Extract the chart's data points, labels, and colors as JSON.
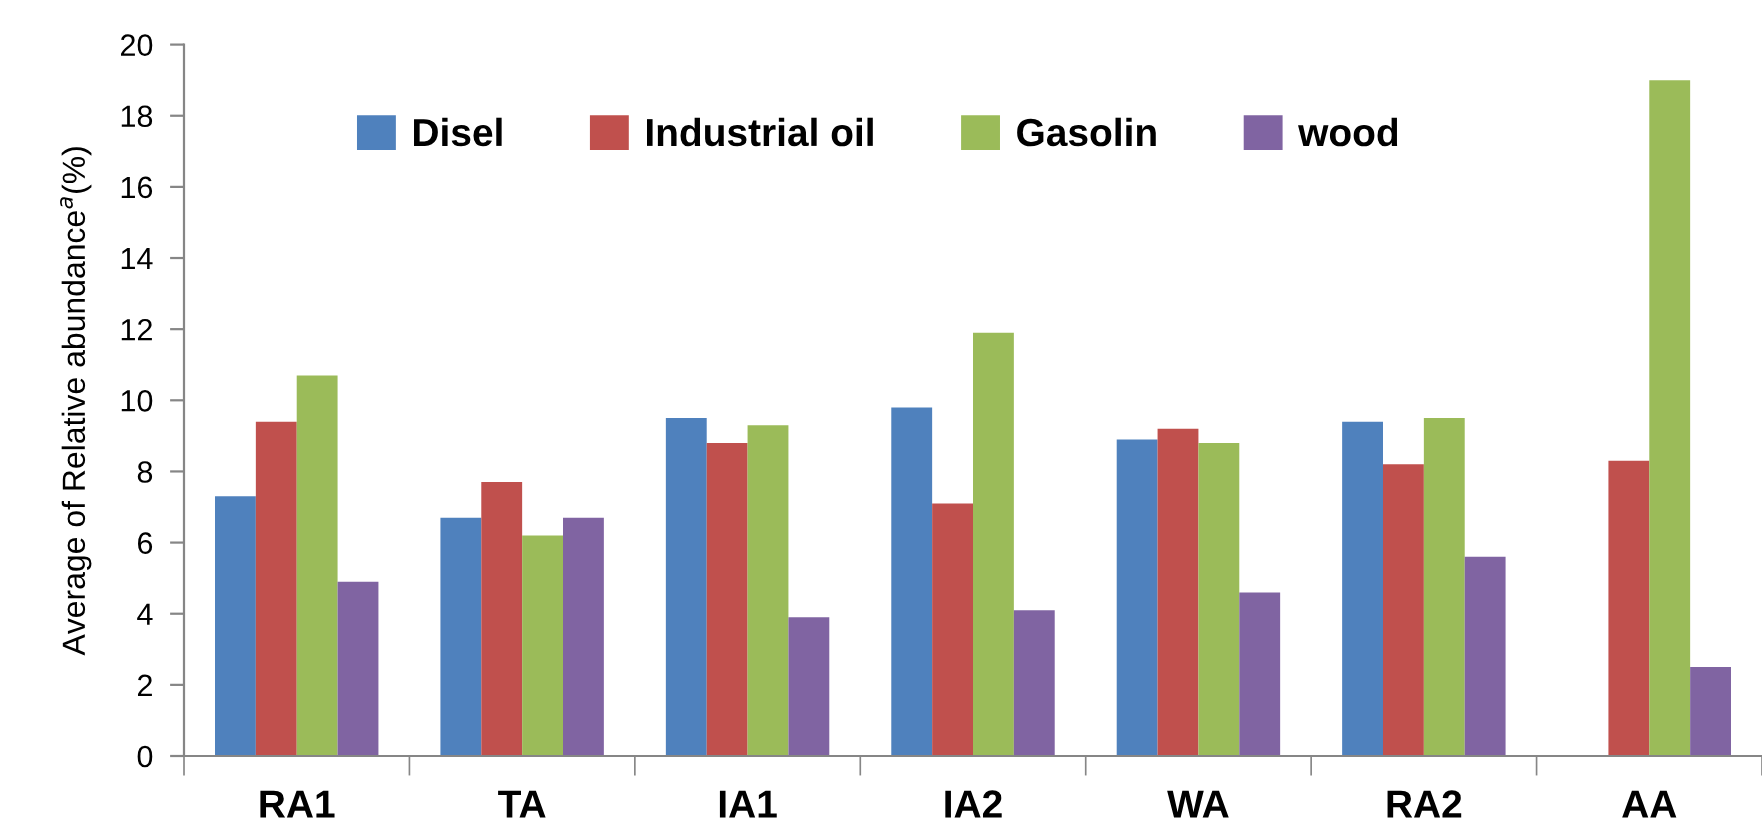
{
  "chart_data": {
    "type": "bar",
    "ylabel": "Average of Relative abundance$^{a}$(%)",
    "categories": [
      "RA1",
      "TA",
      "IA1",
      "IA2",
      "WA",
      "RA2",
      "AA"
    ],
    "series": [
      {
        "name": "Disel",
        "color": "#4f81bd",
        "values": [
          7.3,
          6.7,
          9.5,
          9.8,
          8.9,
          9.4,
          null
        ]
      },
      {
        "name": "Industrial oil",
        "color": "#c0504d",
        "values": [
          9.4,
          7.7,
          8.8,
          7.1,
          9.2,
          8.2,
          8.3
        ]
      },
      {
        "name": "Gasolin",
        "color": "#9bbb59",
        "values": [
          10.7,
          6.2,
          9.3,
          11.9,
          8.8,
          9.5,
          19.0
        ]
      },
      {
        "name": "wood",
        "color": "#8064a2",
        "values": [
          4.9,
          6.7,
          3.9,
          4.1,
          4.6,
          5.6,
          2.5
        ]
      }
    ],
    "ylim": [
      0,
      20
    ],
    "yticks": [
      0,
      2,
      4,
      6,
      8,
      10,
      12,
      14,
      16,
      18,
      20
    ],
    "legend": "top"
  }
}
